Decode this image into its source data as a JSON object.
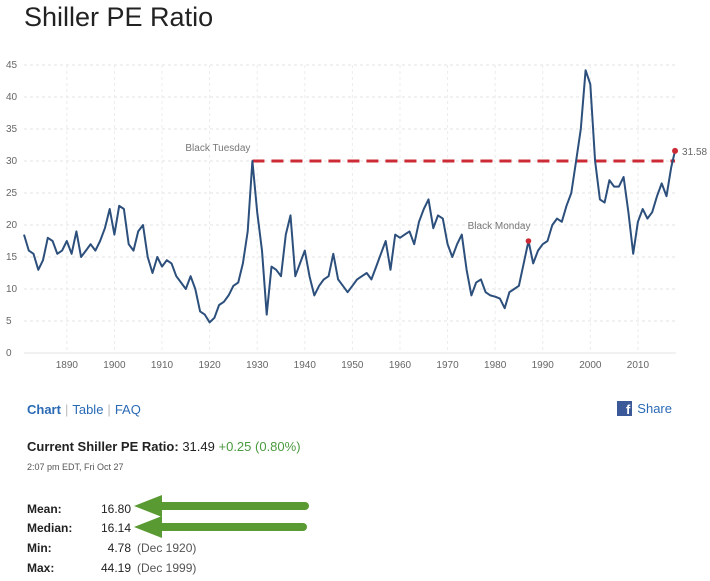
{
  "title": "Shiller PE Ratio",
  "chart_data": {
    "type": "line",
    "series": [
      {
        "values": [
          [
            1881,
            18.5
          ],
          [
            1882,
            16.0
          ],
          [
            1883,
            15.5
          ],
          [
            1884,
            13.0
          ],
          [
            1885,
            14.5
          ],
          [
            1886,
            18.0
          ],
          [
            1887,
            17.5
          ],
          [
            1888,
            15.5
          ],
          [
            1889,
            16.0
          ],
          [
            1890,
            17.5
          ],
          [
            1891,
            15.5
          ],
          [
            1892,
            19.0
          ],
          [
            1893,
            15.0
          ],
          [
            1894,
            16.0
          ],
          [
            1895,
            17.0
          ],
          [
            1896,
            16.0
          ],
          [
            1897,
            17.5
          ],
          [
            1898,
            19.5
          ],
          [
            1899,
            22.5
          ],
          [
            1900,
            18.5
          ],
          [
            1901,
            23.0
          ],
          [
            1902,
            22.5
          ],
          [
            1903,
            17.0
          ],
          [
            1904,
            16.0
          ],
          [
            1905,
            19.0
          ],
          [
            1906,
            20.0
          ],
          [
            1907,
            15.0
          ],
          [
            1908,
            12.5
          ],
          [
            1909,
            15.0
          ],
          [
            1910,
            13.5
          ],
          [
            1911,
            14.5
          ],
          [
            1912,
            14.0
          ],
          [
            1913,
            12.0
          ],
          [
            1914,
            11.0
          ],
          [
            1915,
            10.0
          ],
          [
            1916,
            12.0
          ],
          [
            1917,
            10.0
          ],
          [
            1918,
            6.5
          ],
          [
            1919,
            6.0
          ],
          [
            1920,
            4.78
          ],
          [
            1921,
            5.5
          ],
          [
            1922,
            7.5
          ],
          [
            1923,
            8.0
          ],
          [
            1924,
            9.0
          ],
          [
            1925,
            10.5
          ],
          [
            1926,
            11.0
          ],
          [
            1927,
            14.0
          ],
          [
            1928,
            19.0
          ],
          [
            1929,
            30.0
          ],
          [
            1930,
            22.0
          ],
          [
            1931,
            16.0
          ],
          [
            1932,
            6.0
          ],
          [
            1933,
            13.5
          ],
          [
            1934,
            13.0
          ],
          [
            1935,
            12.0
          ],
          [
            1936,
            18.5
          ],
          [
            1937,
            21.5
          ],
          [
            1938,
            12.0
          ],
          [
            1939,
            14.0
          ],
          [
            1940,
            16.0
          ],
          [
            1941,
            12.0
          ],
          [
            1942,
            9.0
          ],
          [
            1943,
            10.5
          ],
          [
            1944,
            11.5
          ],
          [
            1945,
            12.0
          ],
          [
            1946,
            15.5
          ],
          [
            1947,
            11.5
          ],
          [
            1948,
            10.5
          ],
          [
            1949,
            9.5
          ],
          [
            1950,
            10.5
          ],
          [
            1951,
            11.5
          ],
          [
            1952,
            12.0
          ],
          [
            1953,
            12.5
          ],
          [
            1954,
            11.5
          ],
          [
            1955,
            13.5
          ],
          [
            1956,
            15.5
          ],
          [
            1957,
            17.5
          ],
          [
            1958,
            13.0
          ],
          [
            1959,
            18.5
          ],
          [
            1960,
            18.0
          ],
          [
            1961,
            18.5
          ],
          [
            1962,
            19.0
          ],
          [
            1963,
            17.0
          ],
          [
            1964,
            20.5
          ],
          [
            1965,
            22.5
          ],
          [
            1966,
            24.0
          ],
          [
            1967,
            19.5
          ],
          [
            1968,
            21.5
          ],
          [
            1969,
            21.0
          ],
          [
            1970,
            17.0
          ],
          [
            1971,
            15.0
          ],
          [
            1972,
            17.0
          ],
          [
            1973,
            18.5
          ],
          [
            1974,
            13.0
          ],
          [
            1975,
            9.0
          ],
          [
            1976,
            11.0
          ],
          [
            1977,
            11.5
          ],
          [
            1978,
            9.5
          ],
          [
            1979,
            9.0
          ],
          [
            1980,
            8.8
          ],
          [
            1981,
            8.5
          ],
          [
            1982,
            7.0
          ],
          [
            1983,
            9.5
          ],
          [
            1984,
            10.0
          ],
          [
            1985,
            10.5
          ],
          [
            1986,
            14.0
          ],
          [
            1987,
            17.5
          ],
          [
            1988,
            14.0
          ],
          [
            1989,
            16.0
          ],
          [
            1990,
            17.0
          ],
          [
            1991,
            17.5
          ],
          [
            1992,
            20.0
          ],
          [
            1993,
            21.0
          ],
          [
            1994,
            20.5
          ],
          [
            1995,
            23.0
          ],
          [
            1996,
            25.0
          ],
          [
            1997,
            30.0
          ],
          [
            1998,
            35.0
          ],
          [
            1999,
            44.19
          ],
          [
            2000,
            42.0
          ],
          [
            2001,
            30.0
          ],
          [
            2002,
            24.0
          ],
          [
            2003,
            23.5
          ],
          [
            2004,
            27.0
          ],
          [
            2005,
            26.0
          ],
          [
            2006,
            26.0
          ],
          [
            2007,
            27.5
          ],
          [
            2008,
            22.0
          ],
          [
            2009,
            15.5
          ],
          [
            2010,
            20.5
          ],
          [
            2011,
            22.5
          ],
          [
            2012,
            21.0
          ],
          [
            2013,
            22.0
          ],
          [
            2014,
            24.5
          ],
          [
            2015,
            26.5
          ],
          [
            2016,
            24.5
          ],
          [
            2017,
            29.0
          ],
          [
            2017.8,
            31.58
          ]
        ]
      }
    ],
    "xlim": [
      1881,
      2018
    ],
    "ylim": [
      0,
      45
    ],
    "yticks": [
      "0",
      "5",
      "10",
      "15",
      "20",
      "25",
      "30",
      "35",
      "40",
      "45"
    ],
    "xticks": [
      "1890",
      "1900",
      "1910",
      "1920",
      "1930",
      "1940",
      "1950",
      "1960",
      "1970",
      "1980",
      "1990",
      "2000",
      "2010"
    ],
    "grid": "horizontal, dashed",
    "line_color": "#2c4f7c",
    "reference_line": {
      "y": 30.0,
      "from_x": 1929,
      "to_x": 2017.8,
      "color": "#cc2b35",
      "style": "dashed"
    },
    "annotations": [
      {
        "text": "Black Tuesday",
        "x": 1929,
        "y": 30.0
      },
      {
        "text": "Black Monday",
        "x": 1987,
        "y": 17.5
      }
    ],
    "end_label": "31.58"
  },
  "tabs": [
    {
      "label": "Chart",
      "active": true
    },
    {
      "label": "Table",
      "active": false
    },
    {
      "label": "FAQ",
      "active": false
    }
  ],
  "share_label": "Share",
  "current": {
    "label": "Current Shiller PE Ratio:",
    "value": "31.49",
    "change": "+0.25 (0.80%)",
    "timestamp": "2:07 pm EDT, Fri Oct 27"
  },
  "stats": [
    {
      "key": "Mean:",
      "value": "16.80",
      "date": ""
    },
    {
      "key": "Median:",
      "value": "16.14",
      "date": ""
    },
    {
      "key": "Min:",
      "value": "4.78",
      "date": "(Dec 1920)"
    },
    {
      "key": "Max:",
      "value": "44.19",
      "date": "(Dec 1999)"
    }
  ],
  "arrow_color": "#5a9a32"
}
